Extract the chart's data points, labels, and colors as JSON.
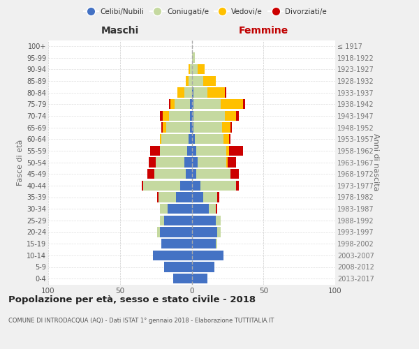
{
  "age_groups": [
    "0-4",
    "5-9",
    "10-14",
    "15-19",
    "20-24",
    "25-29",
    "30-34",
    "35-39",
    "40-44",
    "45-49",
    "50-54",
    "55-59",
    "60-64",
    "65-69",
    "70-74",
    "75-79",
    "80-84",
    "85-89",
    "90-94",
    "95-99",
    "100+"
  ],
  "birth_years": [
    "2013-2017",
    "2008-2012",
    "2003-2007",
    "1998-2002",
    "1993-1997",
    "1988-1992",
    "1983-1987",
    "1978-1982",
    "1973-1977",
    "1968-1972",
    "1963-1967",
    "1958-1962",
    "1953-1957",
    "1948-1952",
    "1943-1947",
    "1938-1942",
    "1933-1937",
    "1928-1932",
    "1923-1927",
    "1918-1922",
    "≤ 1917"
  ],
  "colors": {
    "celibe": "#4472C4",
    "coniugato": "#c5d9a0",
    "vedovo": "#ffc000",
    "divorziato": "#cc0000"
  },
  "maschi": {
    "celibe": [
      13,
      19,
      27,
      21,
      22,
      19,
      17,
      11,
      8,
      4,
      5,
      3,
      2,
      1,
      1,
      1,
      0,
      0,
      0,
      0,
      0
    ],
    "coniugato": [
      0,
      0,
      0,
      0,
      2,
      3,
      5,
      12,
      26,
      22,
      20,
      19,
      19,
      17,
      15,
      11,
      5,
      2,
      1,
      0,
      0
    ],
    "vedovo": [
      0,
      0,
      0,
      0,
      0,
      0,
      0,
      0,
      0,
      0,
      0,
      0,
      1,
      2,
      4,
      3,
      5,
      2,
      1,
      0,
      0
    ],
    "divorziato": [
      0,
      0,
      0,
      0,
      0,
      0,
      0,
      1,
      1,
      5,
      5,
      7,
      0,
      1,
      2,
      1,
      0,
      0,
      0,
      0,
      0
    ]
  },
  "femmine": {
    "nubile": [
      11,
      16,
      22,
      17,
      18,
      17,
      12,
      8,
      6,
      3,
      4,
      3,
      2,
      1,
      1,
      1,
      1,
      0,
      0,
      0,
      0
    ],
    "coniugata": [
      0,
      0,
      0,
      1,
      2,
      3,
      5,
      10,
      25,
      24,
      20,
      21,
      20,
      20,
      22,
      19,
      10,
      8,
      4,
      2,
      0
    ],
    "vedova": [
      0,
      0,
      0,
      0,
      0,
      0,
      0,
      0,
      0,
      0,
      1,
      2,
      4,
      6,
      8,
      16,
      12,
      9,
      5,
      0,
      0
    ],
    "divorziata": [
      0,
      0,
      0,
      0,
      0,
      0,
      1,
      1,
      2,
      6,
      6,
      10,
      1,
      1,
      2,
      1,
      1,
      0,
      0,
      0,
      0
    ]
  },
  "xlim": 100,
  "title": "Popolazione per età, sesso e stato civile - 2018",
  "subtitle": "COMUNE DI INTRODACQUA (AQ) - Dati ISTAT 1° gennaio 2018 - Elaborazione TUTTITALIA.IT",
  "xlabel_left": "Maschi",
  "xlabel_right": "Femmine",
  "ylabel_left": "Fasce di età",
  "ylabel_right": "Anni di nascita",
  "legend_labels": [
    "Celibi/Nubili",
    "Coniugati/e",
    "Vedovi/e",
    "Divorziati/e"
  ],
  "bg_color": "#f0f0f0",
  "plot_bg_color": "#ffffff"
}
